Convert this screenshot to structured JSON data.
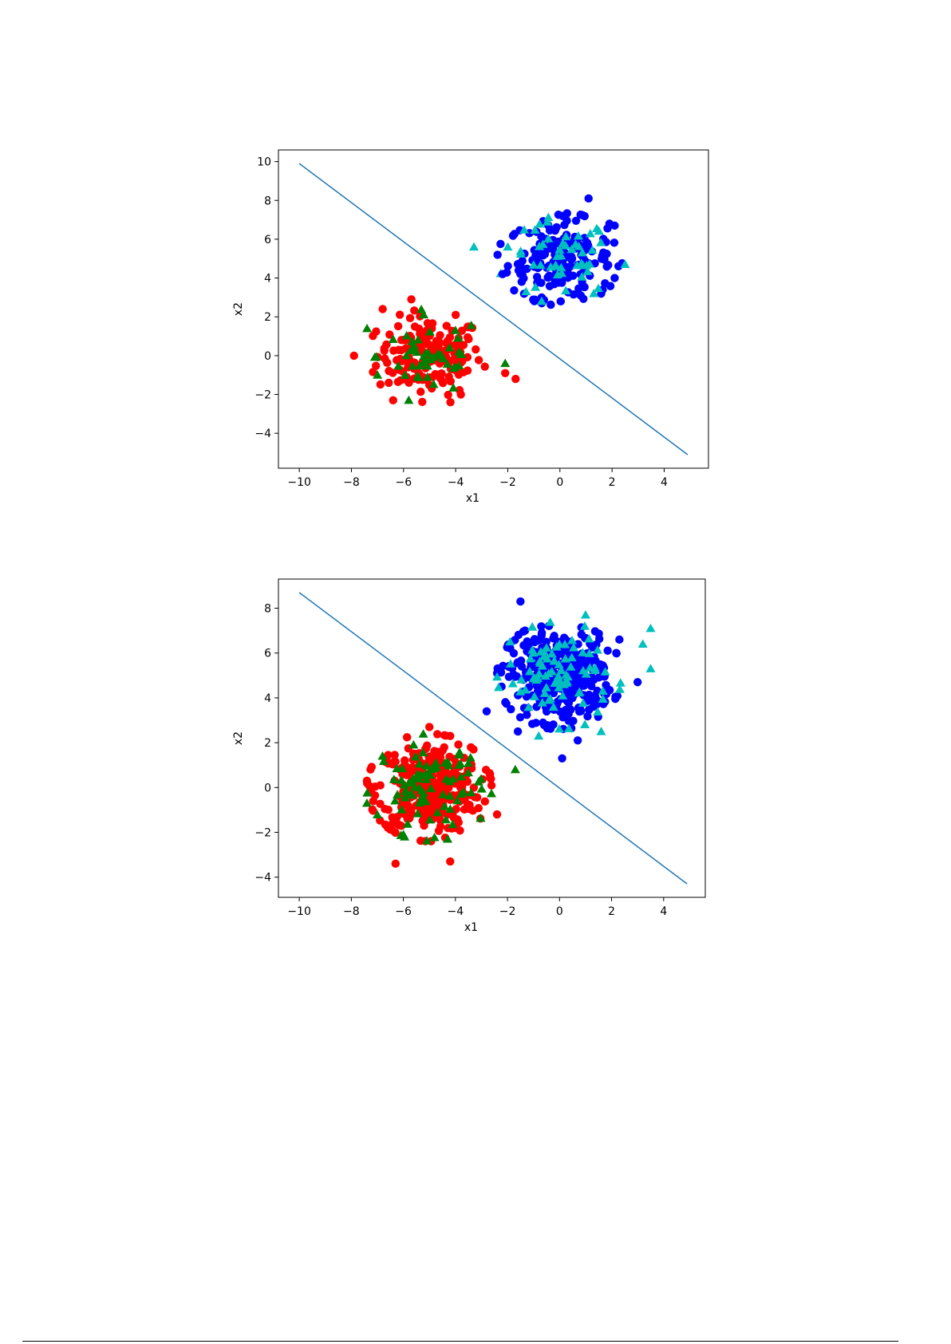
{
  "chart_data": [
    {
      "type": "scatter",
      "title": "",
      "xlabel": "x1",
      "ylabel": "x2",
      "xlim": [
        -10.8,
        5.7
      ],
      "ylim": [
        -5.8,
        10.6
      ],
      "xticks": [
        -10,
        -8,
        -6,
        -4,
        -2,
        0,
        2,
        4
      ],
      "yticks": [
        -4,
        -2,
        0,
        2,
        4,
        6,
        8,
        10
      ],
      "grid": false,
      "line": {
        "name": "",
        "color": "#1f77b4",
        "x": [
          -10,
          4.9
        ],
        "y": [
          9.9,
          -5.1
        ]
      },
      "clusters": [
        {
          "class": "red-circle",
          "marker": "circle",
          "color": "#ff0000",
          "center": [
            -5,
            0
          ],
          "spread": 1.0,
          "count": 170
        },
        {
          "class": "green-triangle",
          "marker": "triangle",
          "color": "#008000",
          "center": [
            -5,
            0
          ],
          "spread": 1.0,
          "count": 45
        },
        {
          "class": "blue-circle",
          "marker": "circle",
          "color": "#0000ff",
          "center": [
            0,
            5
          ],
          "spread": 1.0,
          "count": 170
        },
        {
          "class": "cyan-triangle",
          "marker": "triangle",
          "color": "#00bfbf",
          "center": [
            0,
            5
          ],
          "spread": 1.0,
          "count": 45
        }
      ],
      "points": [
        {
          "class": "red-circle",
          "x": -7.9,
          "y": 0.0
        },
        {
          "class": "red-circle",
          "x": -5.7,
          "y": 2.9
        },
        {
          "class": "red-circle",
          "x": -3.8,
          "y": -2.0
        },
        {
          "class": "red-circle",
          "x": -4.2,
          "y": -2.4
        },
        {
          "class": "red-circle",
          "x": -6.4,
          "y": -2.3
        },
        {
          "class": "red-circle",
          "x": -1.7,
          "y": -1.2
        },
        {
          "class": "red-circle",
          "x": -2.1,
          "y": -0.9
        },
        {
          "class": "red-circle",
          "x": -6.8,
          "y": 2.4
        },
        {
          "class": "red-circle",
          "x": -4.0,
          "y": 2.1
        },
        {
          "class": "green-triangle",
          "x": -7.4,
          "y": 1.4
        },
        {
          "class": "green-triangle",
          "x": -5.8,
          "y": -2.3
        },
        {
          "class": "green-triangle",
          "x": -2.1,
          "y": -0.4
        },
        {
          "class": "green-triangle",
          "x": -7.0,
          "y": -1.0
        },
        {
          "class": "green-triangle",
          "x": -3.9,
          "y": 0.9
        },
        {
          "class": "blue-circle",
          "x": 1.1,
          "y": 8.1
        },
        {
          "class": "blue-circle",
          "x": -2.2,
          "y": 4.2
        },
        {
          "class": "blue-circle",
          "x": 1.9,
          "y": 6.8
        },
        {
          "class": "blue-circle",
          "x": 2.1,
          "y": 6.7
        },
        {
          "class": "blue-circle",
          "x": 2.1,
          "y": 4.0
        },
        {
          "class": "blue-circle",
          "x": -0.7,
          "y": 3.0
        },
        {
          "class": "blue-circle",
          "x": 0.8,
          "y": 3.1
        },
        {
          "class": "blue-circle",
          "x": 0.1,
          "y": 7.2
        },
        {
          "class": "cyan-triangle",
          "x": -3.3,
          "y": 5.6
        },
        {
          "class": "cyan-triangle",
          "x": 2.5,
          "y": 4.7
        },
        {
          "class": "cyan-triangle",
          "x": -1.3,
          "y": 3.3
        },
        {
          "class": "cyan-triangle",
          "x": -0.7,
          "y": 2.8
        },
        {
          "class": "cyan-triangle",
          "x": 1.3,
          "y": 3.2
        },
        {
          "class": "cyan-triangle",
          "x": -2.0,
          "y": 5.6
        }
      ]
    },
    {
      "type": "scatter",
      "title": "",
      "xlabel": "x1",
      "ylabel": "x2",
      "xlim": [
        -10.8,
        5.6
      ],
      "ylim": [
        -4.9,
        9.3
      ],
      "xticks": [
        -10,
        -8,
        -6,
        -4,
        -2,
        0,
        2,
        4
      ],
      "yticks": [
        -4,
        -2,
        0,
        2,
        4,
        6,
        8
      ],
      "grid": false,
      "line": {
        "name": "",
        "color": "#1f77b4",
        "x": [
          -10,
          4.9
        ],
        "y": [
          8.7,
          -4.3
        ]
      },
      "clusters": [
        {
          "class": "red-circle",
          "marker": "circle",
          "color": "#ff0000",
          "center": [
            -5,
            0
          ],
          "spread": 1.0,
          "count": 340
        },
        {
          "class": "green-triangle",
          "marker": "triangle",
          "color": "#008000",
          "center": [
            -5,
            0
          ],
          "spread": 1.0,
          "count": 85
        },
        {
          "class": "blue-circle",
          "marker": "circle",
          "color": "#0000ff",
          "center": [
            0,
            5
          ],
          "spread": 1.0,
          "count": 340
        },
        {
          "class": "cyan-triangle",
          "marker": "triangle",
          "color": "#00bfbf",
          "center": [
            0,
            5
          ],
          "spread": 1.0,
          "count": 85
        }
      ],
      "points": [
        {
          "class": "blue-circle",
          "x": -1.5,
          "y": 8.3
        },
        {
          "class": "blue-circle",
          "x": 0.1,
          "y": 1.3
        },
        {
          "class": "blue-circle",
          "x": -2.8,
          "y": 3.4
        },
        {
          "class": "blue-circle",
          "x": 3.0,
          "y": 4.7
        },
        {
          "class": "blue-circle",
          "x": 0.7,
          "y": 2.1
        },
        {
          "class": "blue-circle",
          "x": -1.6,
          "y": 2.5
        },
        {
          "class": "blue-circle",
          "x": 2.3,
          "y": 6.6
        },
        {
          "class": "cyan-triangle",
          "x": 3.5,
          "y": 7.1
        },
        {
          "class": "cyan-triangle",
          "x": 3.2,
          "y": 6.4
        },
        {
          "class": "cyan-triangle",
          "x": 3.5,
          "y": 5.3
        },
        {
          "class": "cyan-triangle",
          "x": 1.0,
          "y": 7.7
        },
        {
          "class": "cyan-triangle",
          "x": 1.6,
          "y": 2.5
        },
        {
          "class": "cyan-triangle",
          "x": -0.8,
          "y": 2.3
        },
        {
          "class": "cyan-triangle",
          "x": -1.9,
          "y": 6.5
        },
        {
          "class": "red-circle",
          "x": -6.3,
          "y": -3.4
        },
        {
          "class": "red-circle",
          "x": -4.2,
          "y": -3.3
        },
        {
          "class": "red-circle",
          "x": -2.4,
          "y": -1.2
        },
        {
          "class": "red-circle",
          "x": -4.2,
          "y": 2.3
        },
        {
          "class": "red-circle",
          "x": -5.0,
          "y": 2.7
        },
        {
          "class": "red-circle",
          "x": -7.4,
          "y": 0.3
        },
        {
          "class": "green-triangle",
          "x": -1.7,
          "y": 0.8
        },
        {
          "class": "green-triangle",
          "x": -7.4,
          "y": -0.7
        },
        {
          "class": "green-triangle",
          "x": -6.0,
          "y": -2.1
        },
        {
          "class": "green-triangle",
          "x": -4.3,
          "y": -2.3
        },
        {
          "class": "green-triangle",
          "x": -6.8,
          "y": 1.4
        }
      ]
    }
  ]
}
